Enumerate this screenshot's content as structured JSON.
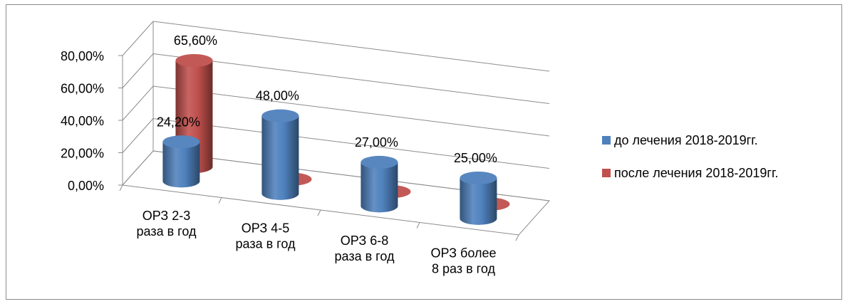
{
  "chart_data": {
    "type": "bar",
    "style": "3d-cylinder",
    "categories": [
      "ОРЗ 2-3\nраза в год",
      "ОРЗ 4-5\nраза в год",
      "ОРЗ 6-8\nраза в год",
      "ОРЗ более\n8 раз в год"
    ],
    "series": [
      {
        "name": "до лечения 2018-2019гг.",
        "color": "#4f81bd",
        "values": [
          24.2,
          48.0,
          27.0,
          25.0
        ],
        "labels": [
          "24,20%",
          "48,00%",
          "27,00%",
          "25,00%"
        ]
      },
      {
        "name": "после лечения 2018-2019гг.",
        "color": "#c0504d",
        "values": [
          65.6,
          0,
          0,
          0
        ],
        "labels": [
          "65,60%",
          "",
          "",
          ""
        ]
      }
    ],
    "ylim": [
      0,
      80
    ],
    "yticks": [
      "0,00%",
      "20,00%",
      "40,00%",
      "60,00%",
      "80,00%"
    ],
    "grid": true,
    "legend_position": "right"
  }
}
